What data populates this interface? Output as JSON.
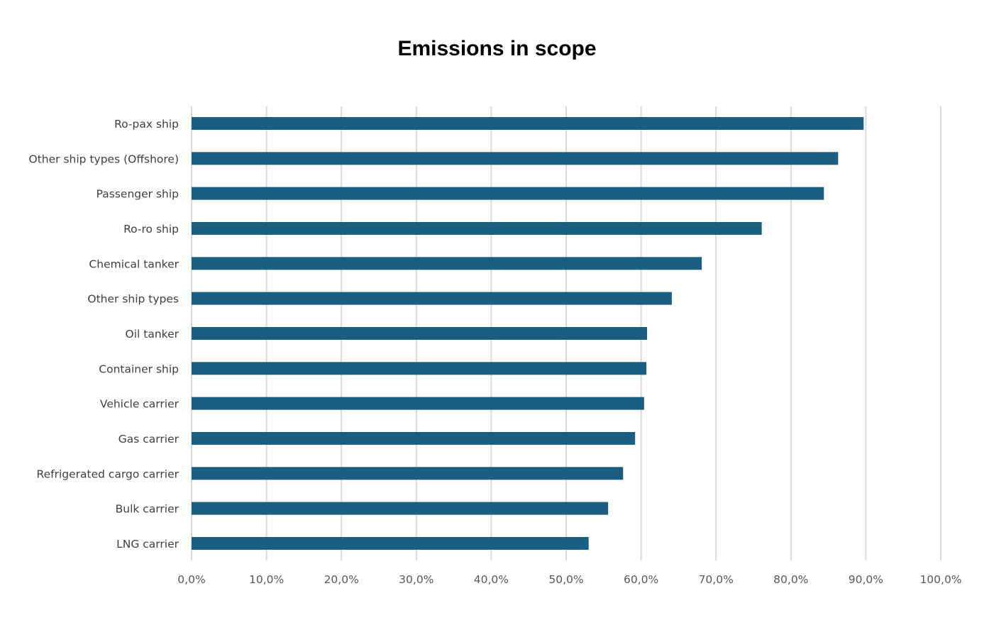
{
  "chart_data": {
    "type": "bar",
    "orientation": "horizontal",
    "title": "Emissions in scope",
    "xlabel": "",
    "ylabel": "",
    "categories": [
      "Ro-pax ship",
      "Other ship types (Offshore)",
      "Passenger ship",
      "Ro-ro ship",
      "Chemical tanker",
      "Other ship types",
      "Oil tanker",
      "Container ship",
      "Vehicle carrier",
      "Gas carrier",
      "Refrigerated cargo carrier",
      "Bulk carrier",
      "LNG carrier"
    ],
    "values": [
      0.897,
      0.863,
      0.844,
      0.761,
      0.681,
      0.641,
      0.608,
      0.607,
      0.604,
      0.592,
      0.576,
      0.556,
      0.53
    ],
    "xlim": [
      0,
      1
    ],
    "xticks": [
      0,
      0.1,
      0.2,
      0.3,
      0.4,
      0.5,
      0.6,
      0.7,
      0.8,
      0.9,
      1.0
    ],
    "xtick_labels": [
      "0,0%",
      "10,0%",
      "20,0%",
      "30,0%",
      "40,0%",
      "50,0%",
      "60,0%",
      "70,0%",
      "80,0%",
      "90,0%",
      "100,0%"
    ],
    "grid": "vertical",
    "legend": "none",
    "colors": {
      "bar": "#1a5f82",
      "grid": "#d9d9d9"
    }
  }
}
